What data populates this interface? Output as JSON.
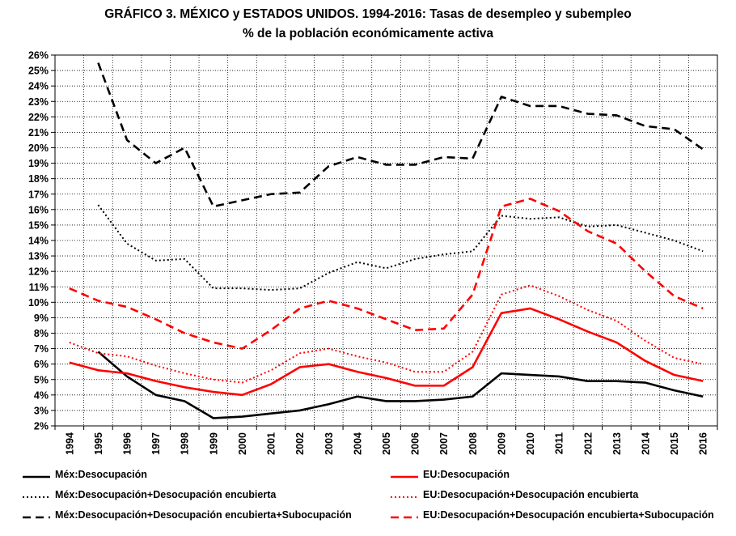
{
  "chart_data": {
    "type": "line",
    "title": "GRÁFICO 3. MÉXICO y ESTADOS UNIDOS. 1994-2016: Tasas de desempleo y subempleo",
    "subtitle": "% de la población económicamente activa",
    "xlabel": "",
    "ylabel": "",
    "ylim": [
      2,
      26
    ],
    "y_tick_step": 1,
    "y_tick_format": "percent",
    "grid": true,
    "legend_position": "bottom",
    "categories": [
      "1994",
      "1995",
      "1996",
      "1997",
      "1998",
      "1999",
      "2000",
      "2001",
      "2002",
      "2003",
      "2004",
      "2005",
      "2006",
      "2007",
      "2008",
      "2009",
      "2010",
      "2011",
      "2012",
      "2013",
      "2014",
      "2015",
      "2016"
    ],
    "series": [
      {
        "name": "Méx:Desocupación",
        "color": "#000000",
        "style": "solid",
        "values": [
          null,
          6.8,
          5.2,
          4.0,
          3.6,
          2.5,
          2.6,
          2.8,
          3.0,
          3.4,
          3.9,
          3.6,
          3.6,
          3.7,
          3.9,
          5.4,
          5.3,
          5.2,
          4.9,
          4.9,
          4.8,
          4.3,
          3.9
        ]
      },
      {
        "name": "EU:Desocupación",
        "color": "#ff0000",
        "style": "solid",
        "values": [
          6.1,
          5.6,
          5.4,
          4.9,
          4.5,
          4.2,
          4.0,
          4.7,
          5.8,
          6.0,
          5.5,
          5.1,
          4.6,
          4.6,
          5.8,
          9.3,
          9.6,
          8.9,
          8.1,
          7.4,
          6.2,
          5.3,
          4.9
        ]
      },
      {
        "name": "Méx:Desocupación+Desocupación encubierta",
        "color": "#000000",
        "style": "dotted",
        "values": [
          null,
          16.3,
          13.8,
          12.7,
          12.8,
          10.9,
          10.9,
          10.8,
          10.9,
          11.9,
          12.6,
          12.2,
          12.8,
          13.1,
          13.3,
          15.6,
          15.4,
          15.5,
          14.9,
          15.0,
          14.5,
          14.0,
          13.3
        ]
      },
      {
        "name": "EU:Desocupación+Desocupación encubierta",
        "color": "#ff0000",
        "style": "dotted",
        "values": [
          7.4,
          6.7,
          6.5,
          5.9,
          5.4,
          5.0,
          4.8,
          5.6,
          6.7,
          7.0,
          6.5,
          6.1,
          5.5,
          5.5,
          6.8,
          10.5,
          11.1,
          10.4,
          9.5,
          8.8,
          7.5,
          6.4,
          6.0
        ]
      },
      {
        "name": "Méx:Desocupación+Desocupación encubierta+Subocupación",
        "color": "#000000",
        "style": "dashed",
        "values": [
          null,
          25.5,
          20.5,
          19.0,
          20.0,
          16.2,
          16.6,
          17.0,
          17.1,
          18.8,
          19.4,
          18.9,
          18.9,
          19.4,
          19.3,
          23.3,
          22.7,
          22.7,
          22.2,
          22.1,
          21.4,
          21.2,
          19.9
        ]
      },
      {
        "name": "EU:Desocupación+Desocupación encubierta+Subocupación",
        "color": "#ff0000",
        "style": "dashed",
        "values": [
          10.9,
          10.1,
          9.7,
          8.9,
          8.0,
          7.4,
          7.0,
          8.2,
          9.6,
          10.1,
          9.6,
          8.9,
          8.2,
          8.3,
          10.5,
          16.2,
          16.7,
          15.9,
          14.6,
          13.8,
          12.0,
          10.4,
          9.6
        ]
      }
    ]
  }
}
